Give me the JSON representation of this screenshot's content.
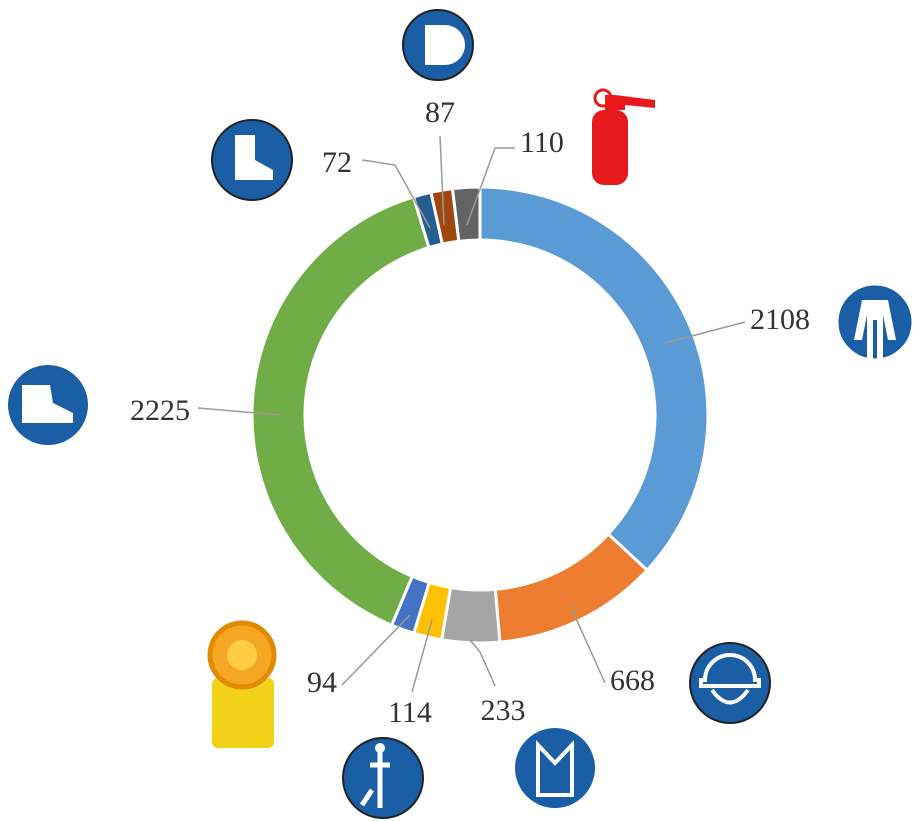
{
  "chart_data": {
    "type": "donut",
    "values": [
      2108,
      668,
      233,
      114,
      94,
      2225,
      72,
      87,
      110
    ],
    "colors": [
      "#5b9bd5",
      "#ed7d31",
      "#a5a5a5",
      "#ffc000",
      "#4472c4",
      "#70ad47",
      "#255e91",
      "#9e480e",
      "#636363"
    ]
  }
}
